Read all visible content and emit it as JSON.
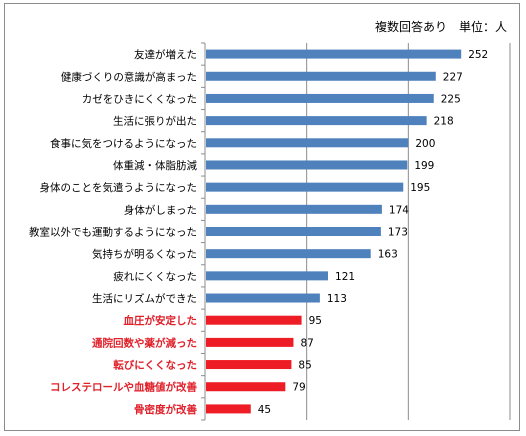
{
  "note": "複数回答あり　単位：人",
  "chart_data": {
    "type": "bar",
    "orientation": "horizontal",
    "categories": [
      "友達が増えた",
      "健康づくりの意識が高まった",
      "カゼをひきにくくなった",
      "生活に張りが出た",
      "食事に気をつけるようになった",
      "体重減・体脂肪減",
      "身体のことを気遣うようになった",
      "身体がしまった",
      "教室以外でも運動するようになった",
      "気持ちが明るくなった",
      "疲れにくくなった",
      "生活にリズムができた",
      "血圧が安定した",
      "通院回数や薬が減った",
      "転びにくくなった",
      "コレステロールや血糖値が改善",
      "骨密度が改善"
    ],
    "values": [
      252,
      227,
      225,
      218,
      200,
      199,
      195,
      174,
      173,
      163,
      121,
      113,
      95,
      87,
      85,
      79,
      45
    ],
    "highlighted_from_index": 12,
    "colors": {
      "normal": "#4f81bd",
      "highlight": "#ee1c25",
      "highlight_label": "#e0202a"
    },
    "xlim": [
      0,
      300
    ],
    "gridlines": [
      100,
      200,
      300
    ],
    "grid": true,
    "legend": false,
    "data_labels": true
  }
}
